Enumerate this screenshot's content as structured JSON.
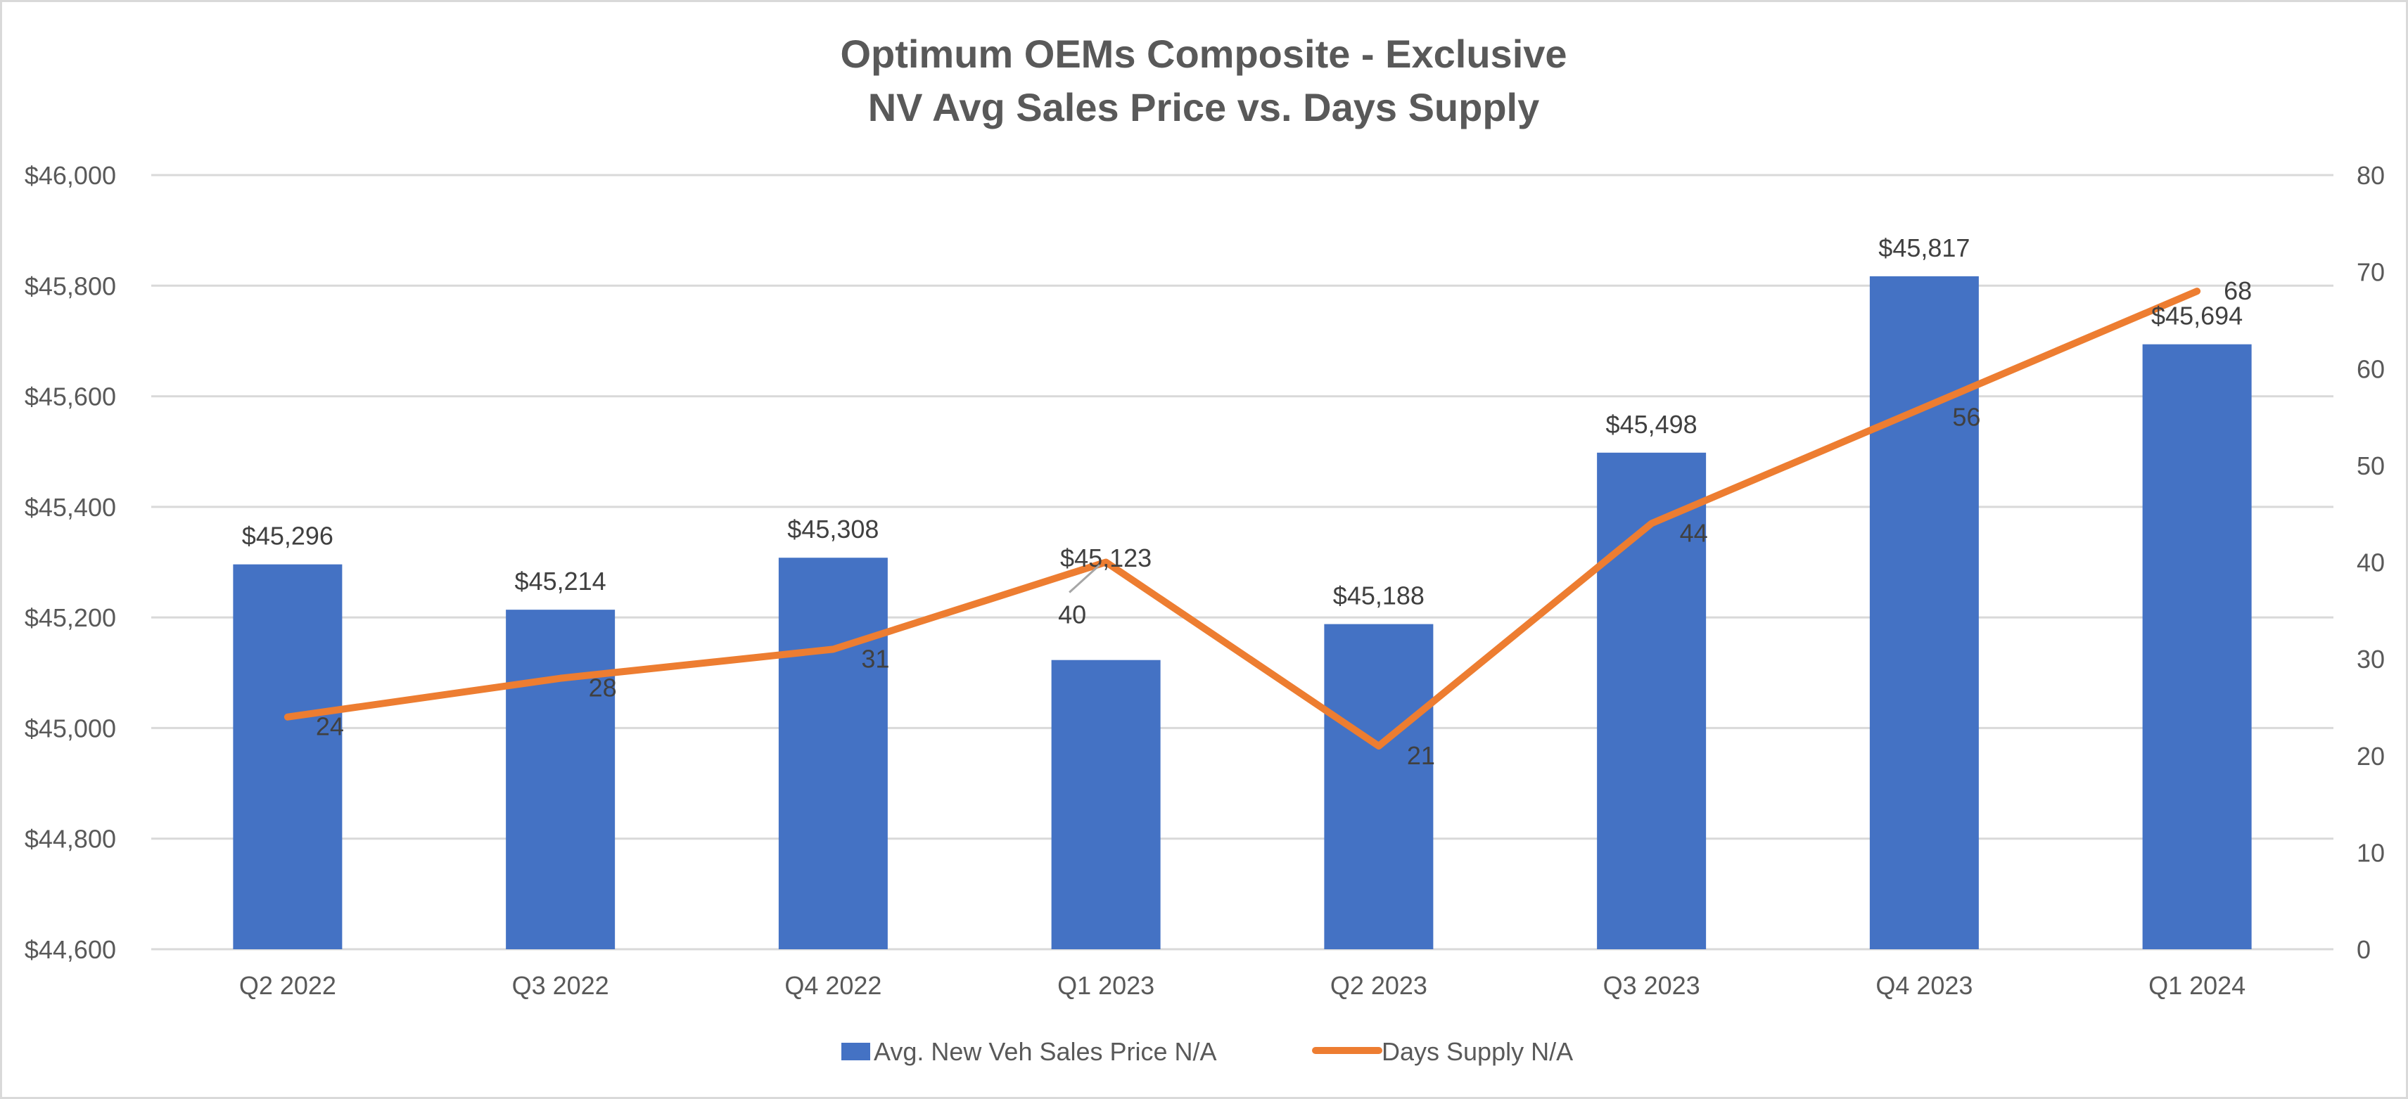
{
  "chart_data": {
    "type": "bar",
    "title": "Optimum OEMs Composite - Exclusive",
    "subtitle": "NV Avg Sales Price vs. Days Supply",
    "categories": [
      "Q2 2022",
      "Q3 2022",
      "Q4 2022",
      "Q1 2023",
      "Q2 2023",
      "Q3 2023",
      "Q4 2023",
      "Q1 2024"
    ],
    "series": [
      {
        "name": "Avg. New Veh Sales Price N/A",
        "type": "bar",
        "axis": "left",
        "color": "#4472C4",
        "values": [
          45296,
          45214,
          45308,
          45123,
          45188,
          45498,
          45817,
          45694
        ],
        "labels": [
          "$45,296",
          "$45,214",
          "$45,308",
          "$45,123",
          "$45,188",
          "$45,498",
          "$45,817",
          "$45,694"
        ]
      },
      {
        "name": "Days Supply N/A",
        "type": "line",
        "axis": "right",
        "color": "#ED7D31",
        "values": [
          24,
          28,
          31,
          40,
          21,
          44,
          56,
          68
        ],
        "labels": [
          "24",
          "28",
          "31",
          "40",
          "21",
          "44",
          "56",
          "68"
        ]
      }
    ],
    "y_left": {
      "range": [
        44600,
        46000
      ],
      "ticks": [
        44600,
        44800,
        45000,
        45200,
        45400,
        45600,
        45800,
        46000
      ],
      "tick_labels": [
        "$44,600",
        "$44,800",
        "$45,000",
        "$45,200",
        "$45,400",
        "$45,600",
        "$45,800",
        "$46,000"
      ]
    },
    "y_right": {
      "range": [
        0,
        80
      ],
      "ticks": [
        0,
        10,
        20,
        30,
        40,
        50,
        60,
        70,
        80
      ],
      "tick_labels": [
        "0",
        "10",
        "20",
        "30",
        "40",
        "50",
        "60",
        "70",
        "80"
      ]
    },
    "xlabel": "",
    "ylabel": "",
    "grid": true,
    "legend": "bottom-center"
  }
}
